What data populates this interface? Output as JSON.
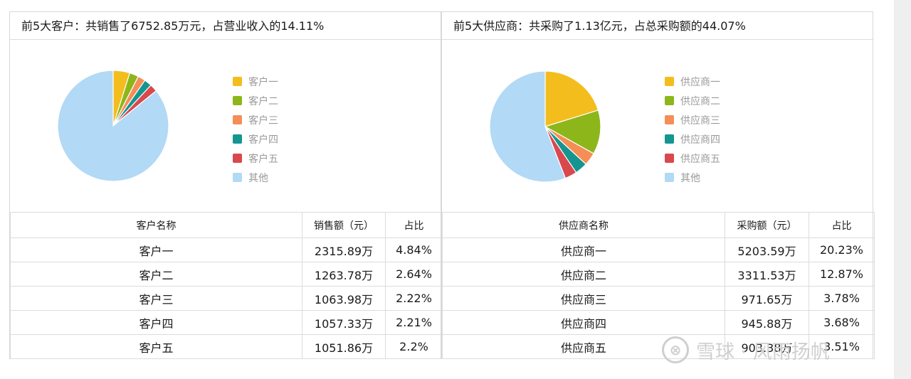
{
  "customers": {
    "header": "前5大客户：共销售了6752.85万元，占营业收入的14.11%",
    "columns": [
      "客户名称",
      "销售额（元）",
      "占比"
    ],
    "rows": [
      {
        "name": "客户一",
        "amount": "2315.89万",
        "pct": "4.84%"
      },
      {
        "name": "客户二",
        "amount": "1263.78万",
        "pct": "2.64%"
      },
      {
        "name": "客户三",
        "amount": "1063.98万",
        "pct": "2.22%"
      },
      {
        "name": "客户四",
        "amount": "1057.33万",
        "pct": "2.21%"
      },
      {
        "name": "客户五",
        "amount": "1051.86万",
        "pct": "2.2%"
      }
    ]
  },
  "suppliers": {
    "header": "前5大供应商：共采购了1.13亿元，占总采购额的44.07%",
    "columns": [
      "供应商名称",
      "采购额（元）",
      "占比"
    ],
    "rows": [
      {
        "name": "供应商一",
        "amount": "5203.59万",
        "pct": "20.23%"
      },
      {
        "name": "供应商二",
        "amount": "3311.53万",
        "pct": "12.87%"
      },
      {
        "name": "供应商三",
        "amount": "971.65万",
        "pct": "3.78%"
      },
      {
        "name": "供应商四",
        "amount": "945.88万",
        "pct": "3.68%"
      },
      {
        "name": "供应商五",
        "amount": "903.38万",
        "pct": "3.51%"
      }
    ]
  },
  "colors": [
    "#f3bd1d",
    "#8db61a",
    "#f58e56",
    "#15958f",
    "#d9484d",
    "#b2d9f6"
  ],
  "chart_data": [
    {
      "type": "pie",
      "labels": [
        "客户一",
        "客户二",
        "客户三",
        "客户四",
        "客户五",
        "其他"
      ],
      "values": [
        4.84,
        2.64,
        2.22,
        2.21,
        2.2,
        85.89
      ],
      "legend": "right"
    },
    {
      "type": "pie",
      "labels": [
        "供应商一",
        "供应商二",
        "供应商三",
        "供应商四",
        "供应商五",
        "其他"
      ],
      "values": [
        20.23,
        12.87,
        3.78,
        3.68,
        3.51,
        55.93
      ],
      "legend": "right"
    }
  ],
  "watermark": {
    "logo": "⊗",
    "text": "雪球 · 风雨扬帆"
  }
}
